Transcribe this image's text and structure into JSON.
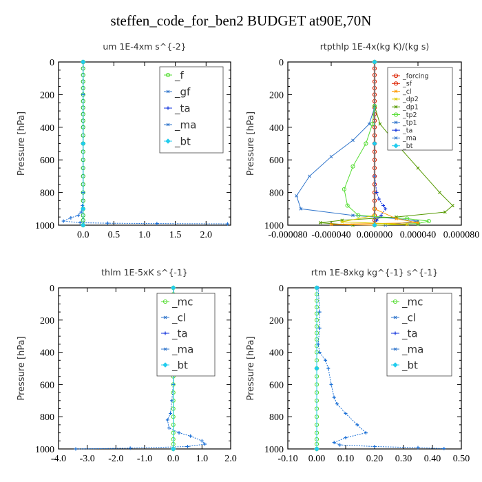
{
  "title": "steffen_code_for_ben2  BUDGET at90E,70N",
  "colors": {
    "green": "#22bb22",
    "lightgreen": "#55dd33",
    "blue": "#1a6fd6",
    "darkblue": "#1133dd",
    "cyan": "#22ccee",
    "red": "#dd2200",
    "orange": "#ff9900",
    "yellow": "#ddcc00",
    "olive": "#559900",
    "steel": "#3377cc"
  },
  "chart_data": [
    {
      "type": "line",
      "title": "um   1E-4xm  s^{-2}",
      "ylabel": "Pressure [hPa]",
      "ylim": [
        1000,
        0
      ],
      "xlim": [
        -0.4,
        2.4
      ],
      "xticks": [
        "0.0",
        "0.5",
        "1.0",
        "1.5",
        "2.0"
      ],
      "xtick_values": [
        0,
        0.5,
        1.0,
        1.5,
        2.0
      ],
      "yticks": [
        "0",
        "200",
        "400",
        "600",
        "800",
        "1000"
      ],
      "legend_position": "top-right",
      "legend": [
        "_f",
        "_gf",
        "_ta",
        "_ma",
        "_bt"
      ],
      "series": [
        {
          "name": "_f",
          "color": "green",
          "x": [
            0,
            0,
            0,
            0,
            0,
            0,
            0,
            0,
            0,
            0,
            0,
            0,
            0,
            0,
            0,
            0,
            0,
            0,
            0,
            0,
            0,
            0,
            0,
            0
          ],
          "y": [
            0,
            40,
            80,
            120,
            160,
            200,
            240,
            280,
            320,
            360,
            400,
            450,
            500,
            550,
            600,
            650,
            700,
            750,
            800,
            850,
            900,
            940,
            970,
            1000
          ]
        },
        {
          "name": "_ta",
          "color": "blue",
          "x": [
            0,
            0,
            0,
            0,
            -0.01,
            -0.03,
            -0.08,
            -0.2,
            -0.32,
            -0.05,
            0.4,
            1.2,
            2.35
          ],
          "y": [
            0,
            200,
            500,
            800,
            880,
            920,
            940,
            955,
            975,
            985,
            988,
            990,
            992
          ]
        },
        {
          "name": "_bt",
          "color": "cyan",
          "x": [
            0,
            0,
            0,
            0
          ],
          "y": [
            0,
            500,
            900,
            1000
          ]
        }
      ]
    },
    {
      "type": "line",
      "title": "rtpthlp   1E-4x(kg K)/(kg s)",
      "ylabel": "Pressure [hPa]",
      "ylim": [
        1000,
        0
      ],
      "xlim": [
        -8e-05,
        8e-05
      ],
      "xticks": [
        "-0.000080",
        "-0.000040",
        "0.000000",
        "0.000040",
        "0.000080"
      ],
      "xtick_values": [
        -8e-05,
        -4e-05,
        0,
        4e-05,
        8e-05
      ],
      "yticks": [
        "0",
        "200",
        "400",
        "600",
        "800",
        "1000"
      ],
      "legend_position": "top-right",
      "legend": [
        "_forcing",
        "_sf",
        "_cl",
        "_dp2",
        "_dp1",
        "_tp2",
        "_tp1",
        "_ta",
        "_ma",
        "_bt"
      ],
      "series": [
        {
          "name": "_forcing",
          "color": "red",
          "x": [
            0,
            0,
            0,
            0,
            0,
            0,
            0,
            0,
            0,
            0,
            0,
            0,
            0,
            0,
            0,
            0,
            0,
            0,
            0,
            0,
            0,
            0,
            0,
            0
          ],
          "y": [
            0,
            40,
            80,
            120,
            160,
            200,
            240,
            280,
            320,
            360,
            400,
            450,
            500,
            550,
            600,
            650,
            700,
            750,
            800,
            850,
            900,
            940,
            970,
            1000
          ]
        },
        {
          "name": "_tp1",
          "color": "steel",
          "x": [
            0,
            0,
            -5e-06,
            -2e-05,
            -4e-05,
            -6e-05,
            -7.2e-05,
            -6.8e-05,
            -2e-05,
            2e-05,
            4e-05,
            1e-05
          ],
          "y": [
            0,
            280,
            380,
            480,
            580,
            700,
            820,
            900,
            940,
            960,
            975,
            1000
          ]
        },
        {
          "name": "_tp2",
          "color": "lightgreen",
          "x": [
            0,
            0,
            -2e-06,
            -8e-06,
            -2e-05,
            -2.8e-05,
            -2.5e-05,
            -1.5e-05,
            3e-05,
            5e-05,
            4e-05,
            0
          ],
          "y": [
            0,
            270,
            380,
            500,
            640,
            780,
            880,
            940,
            960,
            975,
            990,
            1000
          ]
        },
        {
          "name": "_dp1",
          "color": "olive",
          "x": [
            0,
            0,
            5e-06,
            2e-05,
            4e-05,
            6e-05,
            7.2e-05,
            6.5e-05,
            2e-05,
            -3e-05,
            -5e-05,
            -2e-05
          ],
          "y": [
            0,
            270,
            380,
            500,
            650,
            800,
            880,
            920,
            950,
            970,
            985,
            1000
          ]
        },
        {
          "name": "_ta",
          "color": "darkblue",
          "x": [
            0,
            0,
            2e-06,
            4e-06,
            8e-06,
            1e-05,
            6e-06,
            2e-06,
            0
          ],
          "y": [
            0,
            700,
            800,
            840,
            880,
            900,
            940,
            970,
            1000
          ]
        },
        {
          "name": "_cl",
          "color": "orange",
          "x": [
            0,
            0,
            2e-05,
            4e-05,
            -4e-05,
            0
          ],
          "y": [
            0,
            900,
            960,
            985,
            995,
            1000
          ]
        },
        {
          "name": "_dp2",
          "color": "yellow",
          "x": [
            0,
            0,
            -3e-05,
            3e-05,
            0
          ],
          "y": [
            0,
            940,
            980,
            995,
            1000
          ]
        },
        {
          "name": "_bt",
          "color": "cyan",
          "x": [
            0,
            0,
            0
          ],
          "y": [
            0,
            500,
            1000
          ]
        }
      ]
    },
    {
      "type": "line",
      "title": "thlm   1E-5xK  s^{-1}",
      "ylabel": "Pressure [hPa]",
      "ylim": [
        1000,
        0
      ],
      "xlim": [
        -4.0,
        2.0
      ],
      "xticks": [
        "-4.0",
        "-3.0",
        "-2.0",
        "-1.0",
        "0.0",
        "1.0",
        "2.0"
      ],
      "xtick_values": [
        -4,
        -3,
        -2,
        -1,
        0,
        1,
        2
      ],
      "yticks": [
        "0",
        "200",
        "400",
        "600",
        "800",
        "1000"
      ],
      "legend_position": "top-right",
      "legend": [
        "_mc",
        "_cl",
        "_ta",
        "_ma",
        "_bt"
      ],
      "series": [
        {
          "name": "_mc",
          "color": "lightgreen",
          "x": [
            0,
            0,
            0,
            0,
            0,
            0,
            0,
            0,
            0,
            0,
            0,
            0,
            0,
            0,
            0,
            0,
            0,
            0,
            0,
            0,
            0,
            0,
            0,
            0
          ],
          "y": [
            0,
            40,
            80,
            120,
            160,
            200,
            240,
            280,
            320,
            360,
            400,
            450,
            500,
            550,
            600,
            650,
            700,
            750,
            800,
            850,
            900,
            940,
            970,
            1000
          ]
        },
        {
          "name": "_ta",
          "color": "blue",
          "x": [
            0,
            0,
            -0.05,
            -0.1,
            -0.2,
            -0.15,
            0.2,
            0.6,
            1.0,
            1.1,
            0.5,
            -1.5,
            -3.4
          ],
          "y": [
            0,
            600,
            700,
            780,
            820,
            870,
            900,
            920,
            950,
            970,
            985,
            995,
            1000
          ]
        },
        {
          "name": "_bt",
          "color": "cyan",
          "x": [
            0,
            0,
            0
          ],
          "y": [
            0,
            500,
            1000
          ]
        }
      ]
    },
    {
      "type": "line",
      "title": "rtm   1E-8xkg  kg^{-1} s^{-1}",
      "ylabel": "Pressure [hPa]",
      "ylim": [
        1000,
        0
      ],
      "xlim": [
        -0.1,
        0.5
      ],
      "xticks": [
        "-0.10",
        "0.00",
        "0.10",
        "0.20",
        "0.30",
        "0.40",
        "0.50"
      ],
      "xtick_values": [
        -0.1,
        0,
        0.1,
        0.2,
        0.3,
        0.4,
        0.5
      ],
      "yticks": [
        "0",
        "200",
        "400",
        "600",
        "800",
        "1000"
      ],
      "legend_position": "top-right",
      "legend": [
        "_mc",
        "_cl",
        "_ta",
        "_ma",
        "_bt"
      ],
      "series": [
        {
          "name": "_mc",
          "color": "lightgreen",
          "x": [
            0,
            0,
            0,
            0,
            0,
            0,
            0,
            0,
            0,
            0,
            0,
            0,
            0,
            0,
            0,
            0,
            0,
            0,
            0,
            0,
            0,
            0,
            0,
            0
          ],
          "y": [
            0,
            40,
            80,
            120,
            160,
            200,
            240,
            280,
            320,
            360,
            400,
            450,
            500,
            550,
            600,
            650,
            700,
            750,
            800,
            850,
            900,
            940,
            970,
            1000
          ]
        },
        {
          "name": "_ta",
          "color": "blue",
          "x": [
            0.005,
            0.01,
            0.01,
            0.005,
            0.01,
            0.03,
            0.04,
            0.05,
            0.06,
            0.07,
            0.1,
            0.14,
            0.17,
            0.1,
            0.06,
            0.08,
            0.2,
            0.35,
            0.44
          ],
          "y": [
            0,
            150,
            250,
            350,
            400,
            450,
            500,
            600,
            680,
            720,
            780,
            850,
            900,
            930,
            960,
            975,
            985,
            992,
            998
          ]
        },
        {
          "name": "_bt",
          "color": "cyan",
          "x": [
            0,
            0,
            0
          ],
          "y": [
            0,
            500,
            1000
          ]
        }
      ]
    }
  ]
}
